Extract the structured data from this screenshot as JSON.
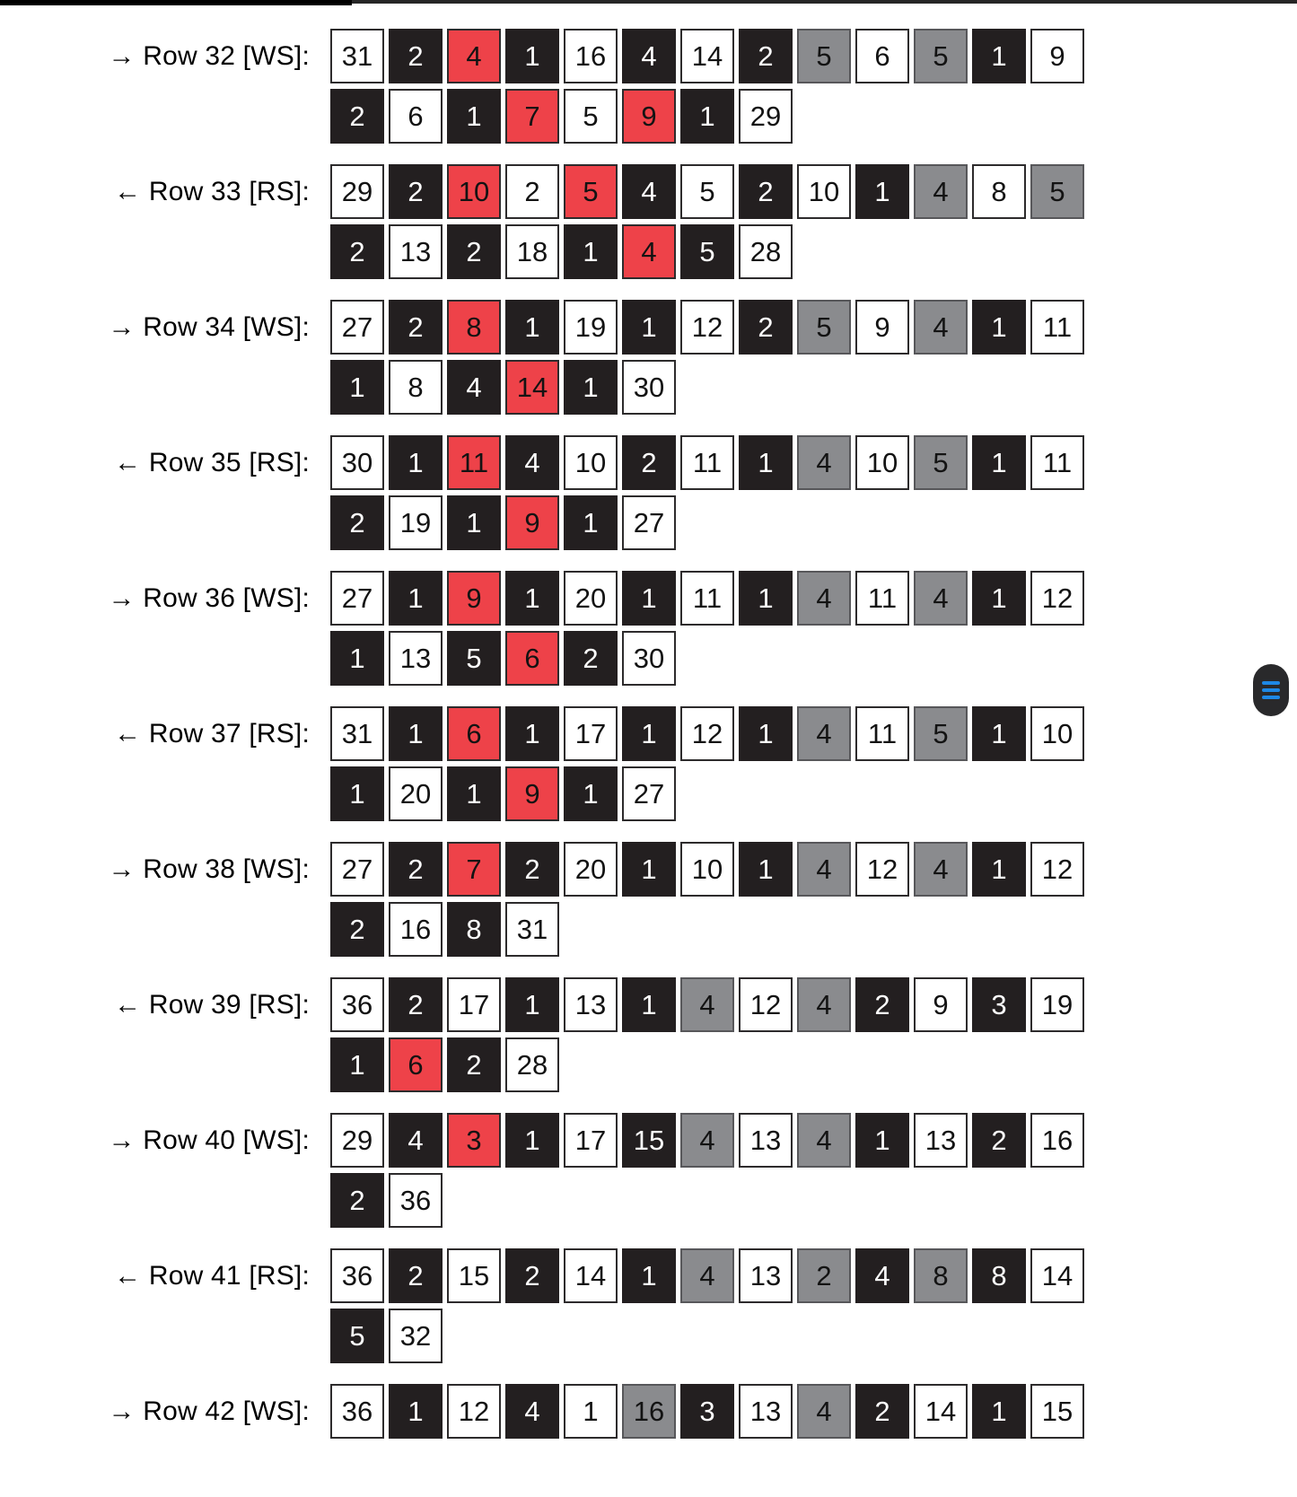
{
  "palette": {
    "black": "#231f20",
    "red": "#ee4249",
    "gray": "#8a8b8e",
    "white": "#ffffff",
    "cell_border": "#2d2b2c",
    "gray_border": "#57575a",
    "accent_blue": "#1e88e5",
    "fab_background": "#29292b"
  },
  "legend": {
    "w": "white",
    "b": "black",
    "r": "red",
    "g": "gray"
  },
  "floating_button": {
    "icon": "hamburger-menu-icon",
    "bars": 3
  },
  "pattern": {
    "rows": [
      {
        "label": "→ Row 32 [WS]:",
        "cells": [
          "31w",
          "2b",
          "4r",
          "1b",
          "16w",
          "4b",
          "14w",
          "2b",
          "5g",
          "6w",
          "5g",
          "1b",
          "9w",
          "2b",
          "6w",
          "1b",
          "7r",
          "5w",
          "9r",
          "1b",
          "29w"
        ]
      },
      {
        "label": "← Row 33 [RS]:",
        "cells": [
          "29w",
          "2b",
          "10r",
          "2w",
          "5r",
          "4b",
          "5w",
          "2b",
          "10w",
          "1b",
          "4g",
          "8w",
          "5g",
          "2b",
          "13w",
          "2b",
          "18w",
          "1b",
          "4r",
          "5b",
          "28w"
        ]
      },
      {
        "label": "→ Row 34 [WS]:",
        "cells": [
          "27w",
          "2b",
          "8r",
          "1b",
          "19w",
          "1b",
          "12w",
          "2b",
          "5g",
          "9w",
          "4g",
          "1b",
          "11w",
          "1b",
          "8w",
          "4b",
          "14r",
          "1b",
          "30w"
        ]
      },
      {
        "label": "← Row 35 [RS]:",
        "cells": [
          "30w",
          "1b",
          "11r",
          "4b",
          "10w",
          "2b",
          "11w",
          "1b",
          "4g",
          "10w",
          "5g",
          "1b",
          "11w",
          "2b",
          "19w",
          "1b",
          "9r",
          "1b",
          "27w"
        ]
      },
      {
        "label": "→ Row 36 [WS]:",
        "cells": [
          "27w",
          "1b",
          "9r",
          "1b",
          "20w",
          "1b",
          "11w",
          "1b",
          "4g",
          "11w",
          "4g",
          "1b",
          "12w",
          "1b",
          "13w",
          "5b",
          "6r",
          "2b",
          "30w"
        ]
      },
      {
        "label": "← Row 37 [RS]:",
        "cells": [
          "31w",
          "1b",
          "6r",
          "1b",
          "17w",
          "1b",
          "12w",
          "1b",
          "4g",
          "11w",
          "5g",
          "1b",
          "10w",
          "1b",
          "20w",
          "1b",
          "9r",
          "1b",
          "27w"
        ]
      },
      {
        "label": "→ Row 38 [WS]:",
        "cells": [
          "27w",
          "2b",
          "7r",
          "2b",
          "20w",
          "1b",
          "10w",
          "1b",
          "4g",
          "12w",
          "4g",
          "1b",
          "12w",
          "2b",
          "16w",
          "8b",
          "31w"
        ]
      },
      {
        "label": "← Row 39 [RS]:",
        "cells": [
          "36w",
          "2b",
          "17w",
          "1b",
          "13w",
          "1b",
          "4g",
          "12w",
          "4g",
          "2b",
          "9w",
          "3b",
          "19w",
          "1b",
          "6r",
          "2b",
          "28w"
        ]
      },
      {
        "label": "→ Row 40 [WS]:",
        "cells": [
          "29w",
          "4b",
          "3r",
          "1b",
          "17w",
          "15b",
          "4g",
          "13w",
          "4g",
          "1b",
          "13w",
          "2b",
          "16w",
          "2b",
          "36w"
        ]
      },
      {
        "label": "← Row 41 [RS]:",
        "cells": [
          "36w",
          "2b",
          "15w",
          "2b",
          "14w",
          "1b",
          "4g",
          "13w",
          "2g",
          "4b",
          "8g",
          "8b",
          "14w",
          "5b",
          "32w"
        ]
      },
      {
        "label": "→ Row 42 [WS]:",
        "cells": [
          "36w",
          "1b",
          "12w",
          "4b",
          "1w",
          "16g",
          "3b",
          "13w",
          "4g",
          "2b",
          "14w",
          "1b",
          "15w"
        ]
      }
    ]
  }
}
